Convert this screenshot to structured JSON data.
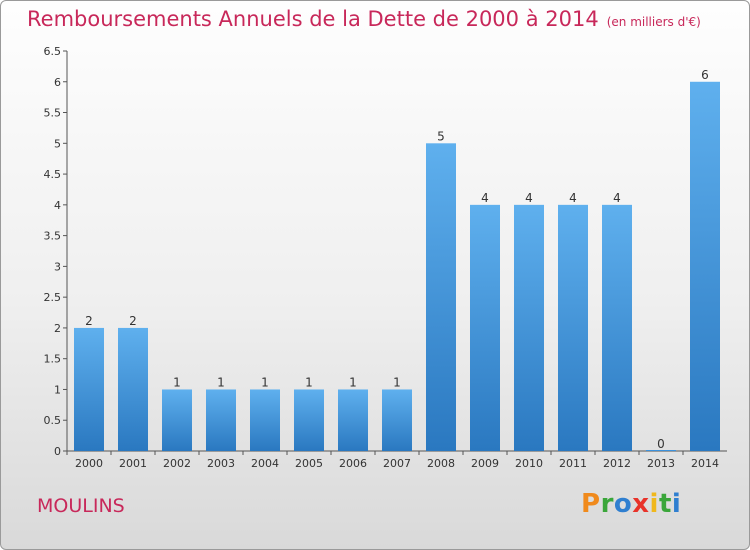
{
  "header": {
    "title": "Remboursements Annuels de la Dette de 2000 à 2014",
    "unit": "(en milliers d'€)"
  },
  "footer": {
    "town": "MOULINS",
    "logo_letters": [
      {
        "char": "P",
        "color": "#f08a1c"
      },
      {
        "char": "r",
        "color": "#3aa63a"
      },
      {
        "char": "o",
        "color": "#2f7fd0"
      },
      {
        "char": "x",
        "color": "#e8332a"
      },
      {
        "char": "i",
        "color": "#f0b81c"
      },
      {
        "char": "t",
        "color": "#3aa63a"
      },
      {
        "char": "i",
        "color": "#2f7fd0"
      }
    ]
  },
  "chart_data": {
    "type": "bar",
    "title": "Remboursements Annuels de la Dette de 2000 à 2014",
    "categories": [
      "2000",
      "2001",
      "2002",
      "2003",
      "2004",
      "2005",
      "2006",
      "2007",
      "2008",
      "2009",
      "2010",
      "2011",
      "2012",
      "2013",
      "2014"
    ],
    "values": [
      2,
      2,
      1,
      1,
      1,
      1,
      1,
      1,
      5,
      4,
      4,
      4,
      4,
      0,
      6
    ],
    "value_labels": [
      "2",
      "2",
      "1",
      "1",
      "1",
      "1",
      "1",
      "1",
      "5",
      "4",
      "4",
      "4",
      "4",
      "0",
      "6"
    ],
    "y_ticks": [
      "0",
      "0.5",
      "1",
      "1.5",
      "2",
      "2.5",
      "3",
      "3.5",
      "4",
      "4.5",
      "5",
      "5.5",
      "6",
      "6.5"
    ],
    "ylim": [
      0,
      6.5
    ],
    "bar_color": "#3d92dc",
    "grid": false
  }
}
